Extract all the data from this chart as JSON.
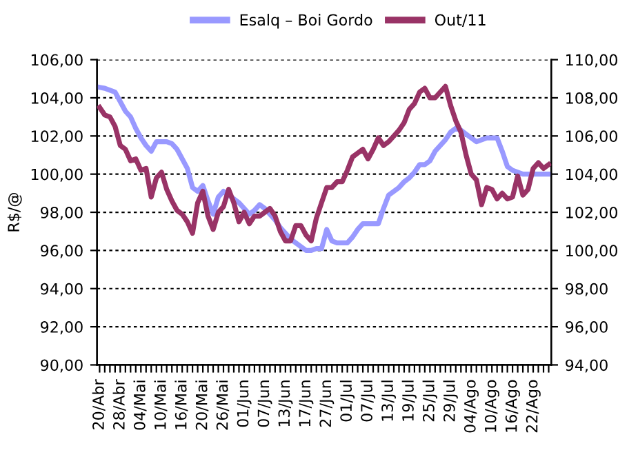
{
  "chart_data": {
    "type": "line",
    "ylabel": "R$/@",
    "categories": [
      "20/Abr",
      null,
      null,
      null,
      "28/Abr",
      null,
      null,
      null,
      "04/Mai",
      null,
      null,
      null,
      "10/Mai",
      null,
      null,
      null,
      "16/Mai",
      null,
      null,
      null,
      "20/Mai",
      null,
      null,
      null,
      "26/Mai",
      null,
      null,
      null,
      "01/Jun",
      null,
      null,
      null,
      "07/Jun",
      null,
      null,
      null,
      "13/Jun",
      null,
      null,
      null,
      "17/Jun",
      null,
      null,
      null,
      "27/Jun",
      null,
      null,
      null,
      "01/Jul",
      null,
      null,
      null,
      "07/Jul",
      null,
      null,
      null,
      "13/Jul",
      null,
      null,
      null,
      "19/Jul",
      null,
      null,
      null,
      "25/Jul",
      null,
      null,
      null,
      "29/Jul",
      null,
      null,
      null,
      "04/Ago",
      null,
      null,
      null,
      "10/Ago",
      null,
      null,
      null,
      "16/Ago",
      null,
      null,
      null,
      "22/Ago",
      null,
      null,
      null
    ],
    "series": [
      {
        "name": "Esalq – Boi Gordo",
        "color": "#9999ff",
        "values": [
          104.55,
          104.5,
          104.4,
          104.3,
          103.8,
          103.3,
          103.0,
          102.4,
          101.9,
          101.5,
          101.2,
          101.7,
          101.7,
          101.7,
          101.6,
          101.3,
          100.8,
          100.3,
          99.3,
          99.1,
          99.4,
          98.6,
          97.9,
          98.8,
          99.1,
          98.9,
          98.7,
          98.5,
          98.2,
          97.9,
          98.1,
          98.4,
          98.2,
          97.9,
          97.6,
          97.2,
          96.9,
          96.6,
          96.4,
          96.2,
          96.0,
          96.0,
          96.1,
          96.1,
          97.1,
          96.5,
          96.4,
          96.4,
          96.4,
          96.7,
          97.1,
          97.4,
          97.4,
          97.4,
          97.4,
          98.2,
          98.9,
          99.1,
          99.3,
          99.6,
          99.8,
          100.1,
          100.5,
          100.5,
          100.7,
          101.2,
          101.5,
          101.8,
          102.2,
          102.4,
          102.3,
          102.1,
          101.9,
          101.7,
          101.8,
          101.9,
          101.9,
          101.9,
          101.2,
          100.4,
          100.2,
          100.1,
          100.0,
          100.0,
          100.0,
          100.0,
          100.0,
          100.0
        ]
      },
      {
        "name": "Out/11",
        "color": "#993366",
        "axis": "y2",
        "values": [
          107.5,
          107.1,
          107.0,
          106.5,
          105.5,
          105.3,
          104.7,
          104.8,
          104.2,
          104.3,
          102.8,
          103.8,
          104.1,
          103.2,
          102.6,
          102.1,
          101.9,
          101.5,
          100.9,
          102.5,
          103.1,
          101.8,
          101.1,
          102.0,
          102.3,
          103.2,
          102.5,
          101.5,
          102.0,
          101.4,
          101.8,
          101.8,
          102.0,
          102.2,
          101.8,
          101.0,
          100.5,
          100.5,
          101.3,
          101.3,
          100.8,
          100.5,
          101.7,
          102.5,
          103.3,
          103.3,
          103.6,
          103.6,
          104.2,
          104.9,
          105.1,
          105.3,
          104.8,
          105.3,
          105.9,
          105.5,
          105.7,
          106.0,
          106.3,
          106.7,
          107.4,
          107.7,
          108.3,
          108.5,
          108.0,
          108.0,
          108.3,
          108.6,
          107.6,
          106.8,
          106.2,
          105.0,
          104.0,
          103.7,
          102.4,
          103.3,
          103.2,
          102.7,
          103.0,
          102.7,
          102.8,
          103.9,
          102.9,
          103.2,
          104.3,
          104.6,
          104.3,
          104.5
        ]
      }
    ],
    "ylim": [
      90,
      106
    ],
    "yticks": [
      {
        "value": 90,
        "label": "90,00"
      },
      {
        "value": 92,
        "label": "92,00"
      },
      {
        "value": 94,
        "label": "94,00"
      },
      {
        "value": 96,
        "label": "96,00"
      },
      {
        "value": 98,
        "label": "98,00"
      },
      {
        "value": 100,
        "label": "100,00"
      },
      {
        "value": 102,
        "label": "102,00"
      },
      {
        "value": 104,
        "label": "104,00"
      },
      {
        "value": 106,
        "label": "106,00"
      }
    ],
    "y2lim": [
      94,
      110
    ],
    "y2ticks": [
      {
        "value": 94,
        "label": "94,00"
      },
      {
        "value": 96,
        "label": "96,00"
      },
      {
        "value": 98,
        "label": "98,00"
      },
      {
        "value": 100,
        "label": "100,00"
      },
      {
        "value": 102,
        "label": "102,00"
      },
      {
        "value": 104,
        "label": "104,00"
      },
      {
        "value": 106,
        "label": "106,00"
      },
      {
        "value": 108,
        "label": "108,00"
      },
      {
        "value": 110,
        "label": "110,00"
      }
    ],
    "grid": "y",
    "legend": "top",
    "marker": "none",
    "line_style": "solid"
  }
}
